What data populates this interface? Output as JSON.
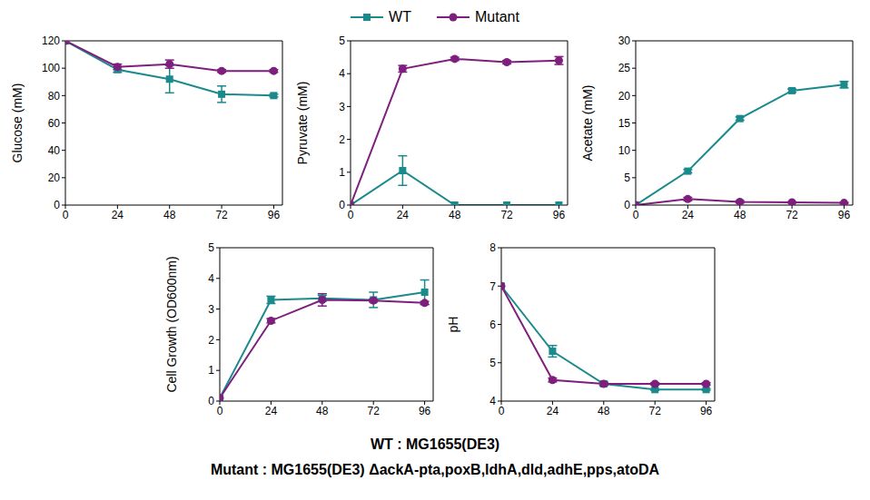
{
  "chart_data": [
    {
      "type": "line",
      "y_label": "Glucose (mM)",
      "x": [
        0,
        24,
        48,
        72,
        96
      ],
      "xlim": [
        0,
        100
      ],
      "xticks": [
        0,
        24,
        48,
        72,
        96
      ],
      "ylim": [
        0,
        120
      ],
      "yticks": [
        0,
        20,
        40,
        60,
        80,
        100,
        120
      ],
      "legend": "top",
      "series": [
        {
          "name": "WT",
          "color": "#1b8a8c",
          "marker": "square",
          "values": [
            120,
            99,
            92,
            81,
            80
          ],
          "errors": [
            0,
            2,
            10,
            6,
            1
          ]
        },
        {
          "name": "Mutant",
          "color": "#7e1f7e",
          "marker": "circle",
          "values": [
            120,
            101,
            103,
            98,
            98
          ],
          "errors": [
            0,
            2,
            3,
            1,
            1
          ]
        }
      ]
    },
    {
      "type": "line",
      "y_label": "Pyruvate (mM)",
      "x": [
        0,
        24,
        48,
        72,
        96
      ],
      "xlim": [
        0,
        100
      ],
      "xticks": [
        0,
        24,
        48,
        72,
        96
      ],
      "ylim": [
        0,
        5
      ],
      "yticks": [
        0,
        1,
        2,
        3,
        4,
        5
      ],
      "series": [
        {
          "name": "WT",
          "color": "#1b8a8c",
          "marker": "square",
          "values": [
            0,
            1.05,
            0,
            0,
            0
          ],
          "errors": [
            0,
            0.45,
            0,
            0,
            0
          ]
        },
        {
          "name": "Mutant",
          "color": "#7e1f7e",
          "marker": "circle",
          "values": [
            0,
            4.15,
            4.45,
            4.35,
            4.4
          ],
          "errors": [
            0,
            0.1,
            0.05,
            0.05,
            0.12
          ]
        }
      ]
    },
    {
      "type": "line",
      "y_label": "Acetate (mM)",
      "x": [
        0,
        24,
        48,
        72,
        96
      ],
      "xlim": [
        0,
        100
      ],
      "xticks": [
        0,
        24,
        48,
        72,
        96
      ],
      "ylim": [
        0,
        30
      ],
      "yticks": [
        0,
        5,
        10,
        15,
        20,
        25,
        30
      ],
      "series": [
        {
          "name": "WT",
          "color": "#1b8a8c",
          "marker": "square",
          "values": [
            0,
            6.2,
            15.8,
            20.9,
            22
          ],
          "errors": [
            0,
            0.3,
            0.3,
            0.3,
            0.6
          ]
        },
        {
          "name": "Mutant",
          "color": "#7e1f7e",
          "marker": "circle",
          "values": [
            0,
            1.1,
            0.6,
            0.5,
            0.4
          ],
          "errors": [
            0,
            0.3,
            0.2,
            0.1,
            0.1
          ]
        }
      ]
    },
    {
      "type": "line",
      "y_label": "Cell Growth (OD600nm)",
      "x": [
        0,
        24,
        48,
        72,
        96
      ],
      "xlim": [
        0,
        100
      ],
      "xticks": [
        0,
        24,
        48,
        72,
        96
      ],
      "ylim": [
        0,
        5
      ],
      "yticks": [
        0,
        1,
        2,
        3,
        4,
        5
      ],
      "series": [
        {
          "name": "WT",
          "color": "#1b8a8c",
          "marker": "square",
          "values": [
            0.1,
            3.3,
            3.35,
            3.3,
            3.55
          ],
          "errors": [
            0,
            0.12,
            0.1,
            0.25,
            0.4
          ]
        },
        {
          "name": "Mutant",
          "color": "#7e1f7e",
          "marker": "circle",
          "values": [
            0.1,
            2.62,
            3.3,
            3.28,
            3.2
          ],
          "errors": [
            0,
            0.07,
            0.2,
            0.05,
            0.05
          ]
        }
      ]
    },
    {
      "type": "line",
      "y_label": "pH",
      "x": [
        0,
        24,
        48,
        72,
        96
      ],
      "xlim": [
        0,
        100
      ],
      "xticks": [
        0,
        24,
        48,
        72,
        96
      ],
      "ylim": [
        4,
        8
      ],
      "yticks": [
        4,
        5,
        6,
        7,
        8
      ],
      "series": [
        {
          "name": "WT",
          "color": "#1b8a8c",
          "marker": "square",
          "values": [
            7,
            5.3,
            4.45,
            4.3,
            4.3
          ],
          "errors": [
            0,
            0.15,
            0.05,
            0.02,
            0.02
          ]
        },
        {
          "name": "Mutant",
          "color": "#7e1f7e",
          "marker": "circle",
          "values": [
            7,
            4.55,
            4.45,
            4.45,
            4.45
          ],
          "errors": [
            0,
            0.05,
            0.03,
            0.03,
            0.03
          ]
        }
      ]
    }
  ],
  "caption": [
    "WT : MG1655(DE3)",
    "Mutant : MG1655(DE3) ΔackA-pta,poxB,ldhA,dld,adhE,pps,atoDA"
  ]
}
